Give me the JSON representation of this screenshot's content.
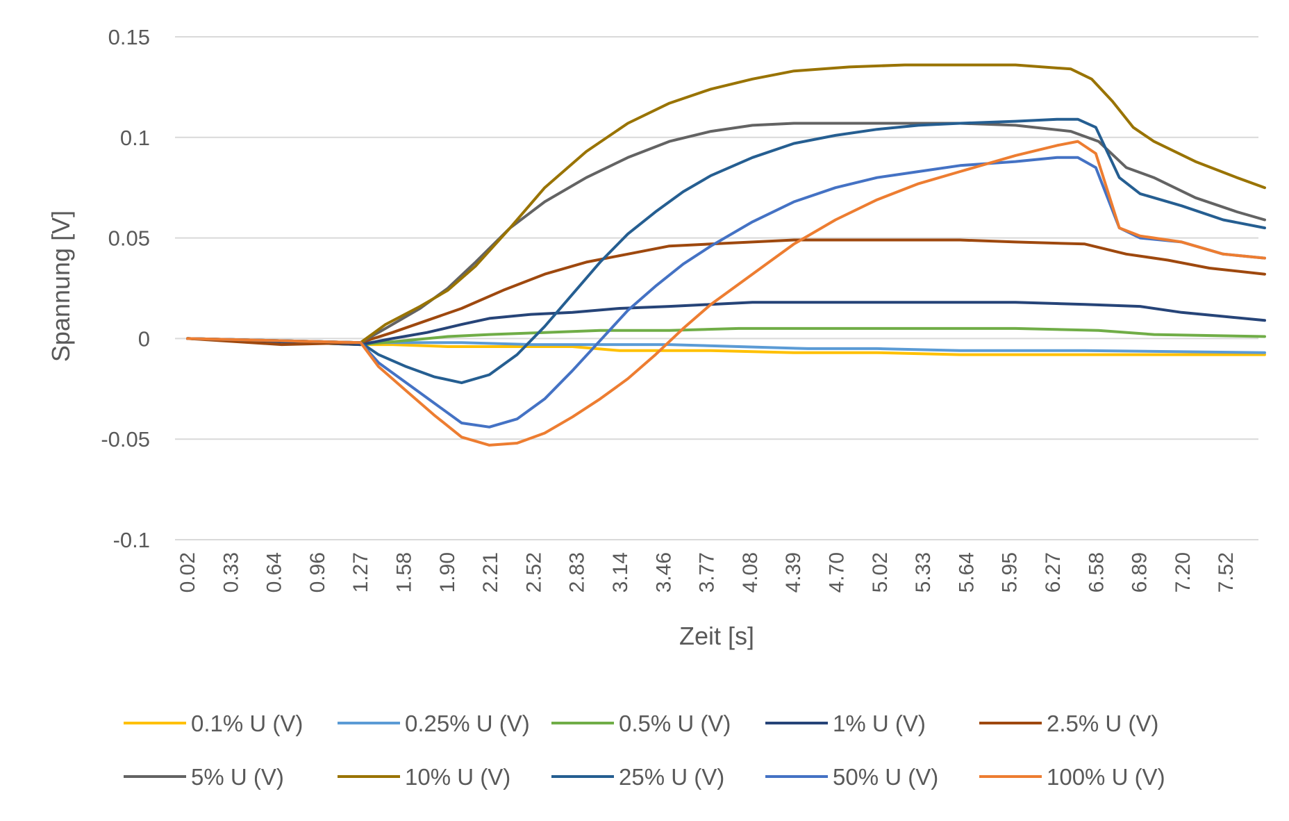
{
  "chart_data": {
    "type": "line",
    "title": "",
    "xlabel": "Zeit [s]",
    "ylabel": "Spannung [V]",
    "ylim": [
      -0.1,
      0.15
    ],
    "yticks": [
      0.15,
      0.1,
      0.05,
      0,
      -0.05,
      -0.1
    ],
    "ytick_labels": [
      "0.15",
      "0.1",
      "0.05",
      "0",
      "-0.05",
      "-0.1"
    ],
    "xticks": [
      "0.02",
      "0.33",
      "0.64",
      "0.96",
      "1.27",
      "1.58",
      "1.90",
      "2.21",
      "2.52",
      "2.83",
      "3.14",
      "3.46",
      "3.77",
      "4.08",
      "4.39",
      "4.70",
      "5.02",
      "5.33",
      "5.64",
      "5.95",
      "6.27",
      "6.58",
      "6.89",
      "7.20",
      "7.52"
    ],
    "grid": "horizontal",
    "legend_position": "bottom",
    "series": [
      {
        "name": "0.1% U (V)",
        "color": "#FFC000",
        "x": [
          0.02,
          1.27,
          1.5,
          1.9,
          2.3,
          2.8,
          3.14,
          3.8,
          4.4,
          5.0,
          5.6,
          6.5,
          7.8
        ],
        "y": [
          0,
          -0.003,
          -0.003,
          -0.004,
          -0.004,
          -0.004,
          -0.006,
          -0.006,
          -0.007,
          -0.007,
          -0.008,
          -0.008,
          -0.008
        ]
      },
      {
        "name": "0.25% U (V)",
        "color": "#5B9BD5",
        "x": [
          0.02,
          1.27,
          1.6,
          2.0,
          2.5,
          3.0,
          3.5,
          4.0,
          4.5,
          5.0,
          5.6,
          6.5,
          7.8
        ],
        "y": [
          0,
          -0.002,
          -0.002,
          -0.002,
          -0.003,
          -0.003,
          -0.003,
          -0.004,
          -0.005,
          -0.005,
          -0.006,
          -0.006,
          -0.007
        ]
      },
      {
        "name": "0.5% U (V)",
        "color": "#70AD47",
        "x": [
          0.02,
          1.27,
          1.6,
          1.9,
          2.2,
          2.6,
          3.0,
          3.5,
          4.0,
          4.5,
          5.0,
          5.5,
          6.0,
          6.6,
          7.0,
          7.8
        ],
        "y": [
          0,
          -0.003,
          -0.001,
          0.001,
          0.002,
          0.003,
          0.004,
          0.004,
          0.005,
          0.005,
          0.005,
          0.005,
          0.005,
          0.004,
          0.002,
          0.001
        ]
      },
      {
        "name": "1% U (V)",
        "color": "#264478",
        "x": [
          0.02,
          1.27,
          1.5,
          1.75,
          2.0,
          2.2,
          2.5,
          2.8,
          3.14,
          3.5,
          3.8,
          4.1,
          4.5,
          5.0,
          5.5,
          6.0,
          6.5,
          6.9,
          7.2,
          7.5,
          7.8
        ],
        "y": [
          0,
          -0.003,
          0.0,
          0.003,
          0.007,
          0.01,
          0.012,
          0.013,
          0.015,
          0.016,
          0.017,
          0.018,
          0.018,
          0.018,
          0.018,
          0.018,
          0.017,
          0.016,
          0.013,
          0.011,
          0.009
        ]
      },
      {
        "name": "2.5% U (V)",
        "color": "#9E480E",
        "x": [
          0.02,
          0.7,
          1.27,
          1.5,
          1.75,
          2.0,
          2.3,
          2.6,
          2.9,
          3.2,
          3.5,
          3.8,
          4.1,
          4.4,
          4.8,
          5.2,
          5.6,
          6.0,
          6.5,
          6.8,
          7.1,
          7.4,
          7.8
        ],
        "y": [
          0,
          -0.003,
          -0.002,
          0.003,
          0.009,
          0.015,
          0.024,
          0.032,
          0.038,
          0.042,
          0.046,
          0.047,
          0.048,
          0.049,
          0.049,
          0.049,
          0.049,
          0.048,
          0.047,
          0.042,
          0.039,
          0.035,
          0.032
        ]
      },
      {
        "name": "5% U (V)",
        "color": "#636363",
        "x": [
          0.02,
          1.27,
          1.45,
          1.7,
          1.9,
          2.1,
          2.35,
          2.6,
          2.9,
          3.2,
          3.5,
          3.8,
          4.1,
          4.4,
          4.8,
          5.2,
          5.6,
          6.0,
          6.4,
          6.6,
          6.8,
          7.0,
          7.3,
          7.6,
          7.8
        ],
        "y": [
          0,
          -0.002,
          0.005,
          0.015,
          0.025,
          0.038,
          0.055,
          0.068,
          0.08,
          0.09,
          0.098,
          0.103,
          0.106,
          0.107,
          0.107,
          0.107,
          0.107,
          0.106,
          0.103,
          0.098,
          0.085,
          0.08,
          0.07,
          0.063,
          0.059
        ]
      },
      {
        "name": "10% U (V)",
        "color": "#997300",
        "x": [
          0.02,
          1.27,
          1.45,
          1.7,
          1.9,
          2.1,
          2.35,
          2.6,
          2.9,
          3.2,
          3.5,
          3.8,
          4.1,
          4.4,
          4.8,
          5.2,
          5.6,
          6.0,
          6.4,
          6.55,
          6.7,
          6.85,
          7.0,
          7.3,
          7.6,
          7.8
        ],
        "y": [
          0,
          -0.002,
          0.007,
          0.016,
          0.024,
          0.036,
          0.055,
          0.075,
          0.093,
          0.107,
          0.117,
          0.124,
          0.129,
          0.133,
          0.135,
          0.136,
          0.136,
          0.136,
          0.134,
          0.129,
          0.118,
          0.105,
          0.098,
          0.088,
          0.08,
          0.075
        ]
      },
      {
        "name": "25% U (V)",
        "color": "#255E91",
        "x": [
          0.02,
          1.27,
          1.4,
          1.6,
          1.8,
          2.0,
          2.2,
          2.4,
          2.6,
          2.8,
          3.0,
          3.2,
          3.4,
          3.6,
          3.8,
          4.1,
          4.4,
          4.7,
          5.0,
          5.3,
          5.6,
          6.0,
          6.3,
          6.45,
          6.58,
          6.75,
          6.9,
          7.2,
          7.5,
          7.8
        ],
        "y": [
          0,
          -0.002,
          -0.008,
          -0.014,
          -0.019,
          -0.022,
          -0.018,
          -0.008,
          0.006,
          0.022,
          0.038,
          0.052,
          0.063,
          0.073,
          0.081,
          0.09,
          0.097,
          0.101,
          0.104,
          0.106,
          0.107,
          0.108,
          0.109,
          0.109,
          0.105,
          0.08,
          0.072,
          0.066,
          0.059,
          0.055
        ]
      },
      {
        "name": "50% U (V)",
        "color": "#4472C4",
        "x": [
          0.02,
          1.27,
          1.4,
          1.6,
          1.8,
          2.0,
          2.2,
          2.4,
          2.6,
          2.8,
          3.0,
          3.2,
          3.4,
          3.6,
          3.8,
          4.1,
          4.4,
          4.7,
          5.0,
          5.3,
          5.6,
          6.0,
          6.3,
          6.45,
          6.58,
          6.75,
          6.9,
          7.2,
          7.5,
          7.8
        ],
        "y": [
          0,
          -0.002,
          -0.012,
          -0.022,
          -0.032,
          -0.042,
          -0.044,
          -0.04,
          -0.03,
          -0.016,
          -0.001,
          0.014,
          0.026,
          0.037,
          0.046,
          0.058,
          0.068,
          0.075,
          0.08,
          0.083,
          0.086,
          0.088,
          0.09,
          0.09,
          0.085,
          0.055,
          0.05,
          0.048,
          0.042,
          0.04
        ]
      },
      {
        "name": "100% U (V)",
        "color": "#ED7D31",
        "x": [
          0.02,
          1.27,
          1.4,
          1.6,
          1.8,
          2.0,
          2.2,
          2.4,
          2.6,
          2.8,
          3.0,
          3.2,
          3.4,
          3.6,
          3.8,
          4.1,
          4.4,
          4.7,
          5.0,
          5.3,
          5.6,
          6.0,
          6.3,
          6.45,
          6.58,
          6.75,
          6.9,
          7.2,
          7.5,
          7.8
        ],
        "y": [
          0,
          -0.002,
          -0.014,
          -0.026,
          -0.038,
          -0.049,
          -0.053,
          -0.052,
          -0.047,
          -0.039,
          -0.03,
          -0.02,
          -0.008,
          0.005,
          0.017,
          0.032,
          0.047,
          0.059,
          0.069,
          0.077,
          0.083,
          0.091,
          0.096,
          0.098,
          0.092,
          0.055,
          0.051,
          0.048,
          0.042,
          0.04
        ]
      }
    ]
  }
}
